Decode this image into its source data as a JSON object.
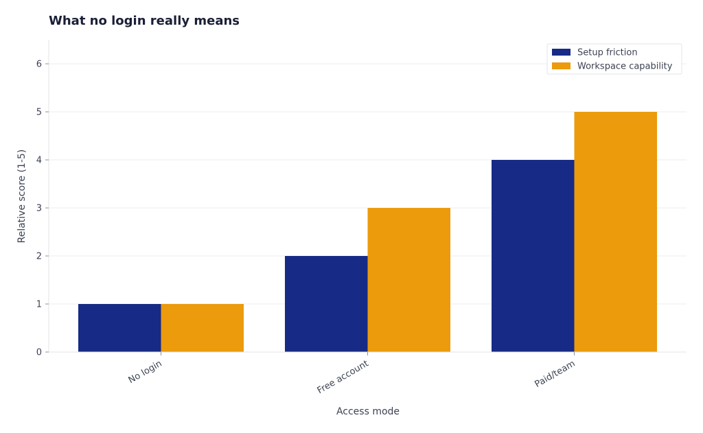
{
  "chart_data": {
    "type": "bar",
    "title": "What no login really means",
    "xlabel": "Access mode",
    "ylabel": "Relative score (1-5)",
    "categories": [
      "No login",
      "Free account",
      "Paid/team"
    ],
    "series": [
      {
        "name": "Setup friction",
        "values": [
          1,
          2,
          4
        ],
        "color": "#172a86"
      },
      {
        "name": "Workspace capability",
        "values": [
          1,
          3,
          5
        ],
        "color": "#eb9b0c"
      }
    ],
    "ylim": [
      0,
      6.5
    ],
    "yticks": [
      0,
      1,
      2,
      3,
      4,
      5,
      6
    ],
    "grid": "y",
    "legend": "top-right"
  }
}
